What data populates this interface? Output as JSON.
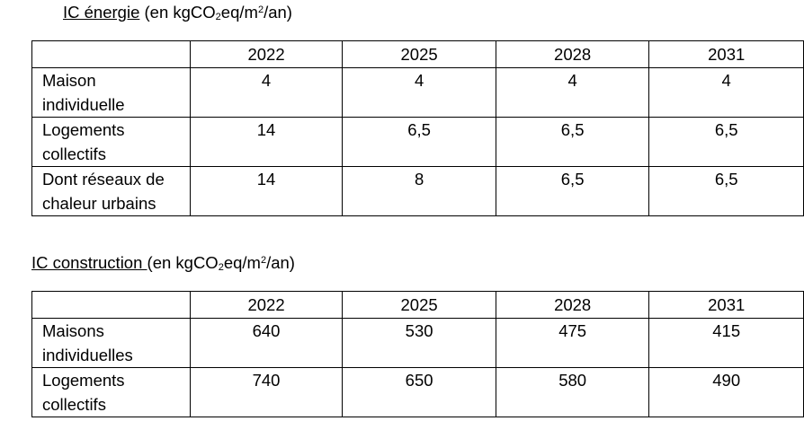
{
  "energy": {
    "title_underlined": "IC énergie",
    "title_prefix": " (en kgCO",
    "title_sub": "2",
    "title_mid": "eq/m",
    "title_sup": "2",
    "title_suffix": "/an)",
    "years": [
      "2022",
      "2025",
      "2028",
      "2031"
    ],
    "rows": [
      {
        "label_l1": "Maison",
        "label_l2": "individuelle",
        "values": [
          "4",
          "4",
          "4",
          "4"
        ]
      },
      {
        "label_l1": "Logements",
        "label_l2": "collectifs",
        "values": [
          "14",
          "6,5",
          "6,5",
          "6,5"
        ]
      },
      {
        "label_l1": "Dont réseaux de",
        "label_l2": "chaleur urbains",
        "values": [
          "14",
          "8",
          "6,5",
          "6,5"
        ]
      }
    ]
  },
  "construction": {
    "title_underlined": "IC construction ",
    "title_prefix": "(en kgCO",
    "title_sub": "2",
    "title_mid": "eq/m",
    "title_sup": "2",
    "title_suffix": "/an)",
    "years": [
      "2022",
      "2025",
      "2028",
      "2031"
    ],
    "rows": [
      {
        "label_l1": "Maisons",
        "label_l2": "individuelles",
        "values": [
          "640",
          "530",
          "475",
          "415"
        ]
      },
      {
        "label_l1": "Logements",
        "label_l2": "collectifs",
        "values": [
          "740",
          "650",
          "580",
          "490"
        ]
      }
    ]
  }
}
